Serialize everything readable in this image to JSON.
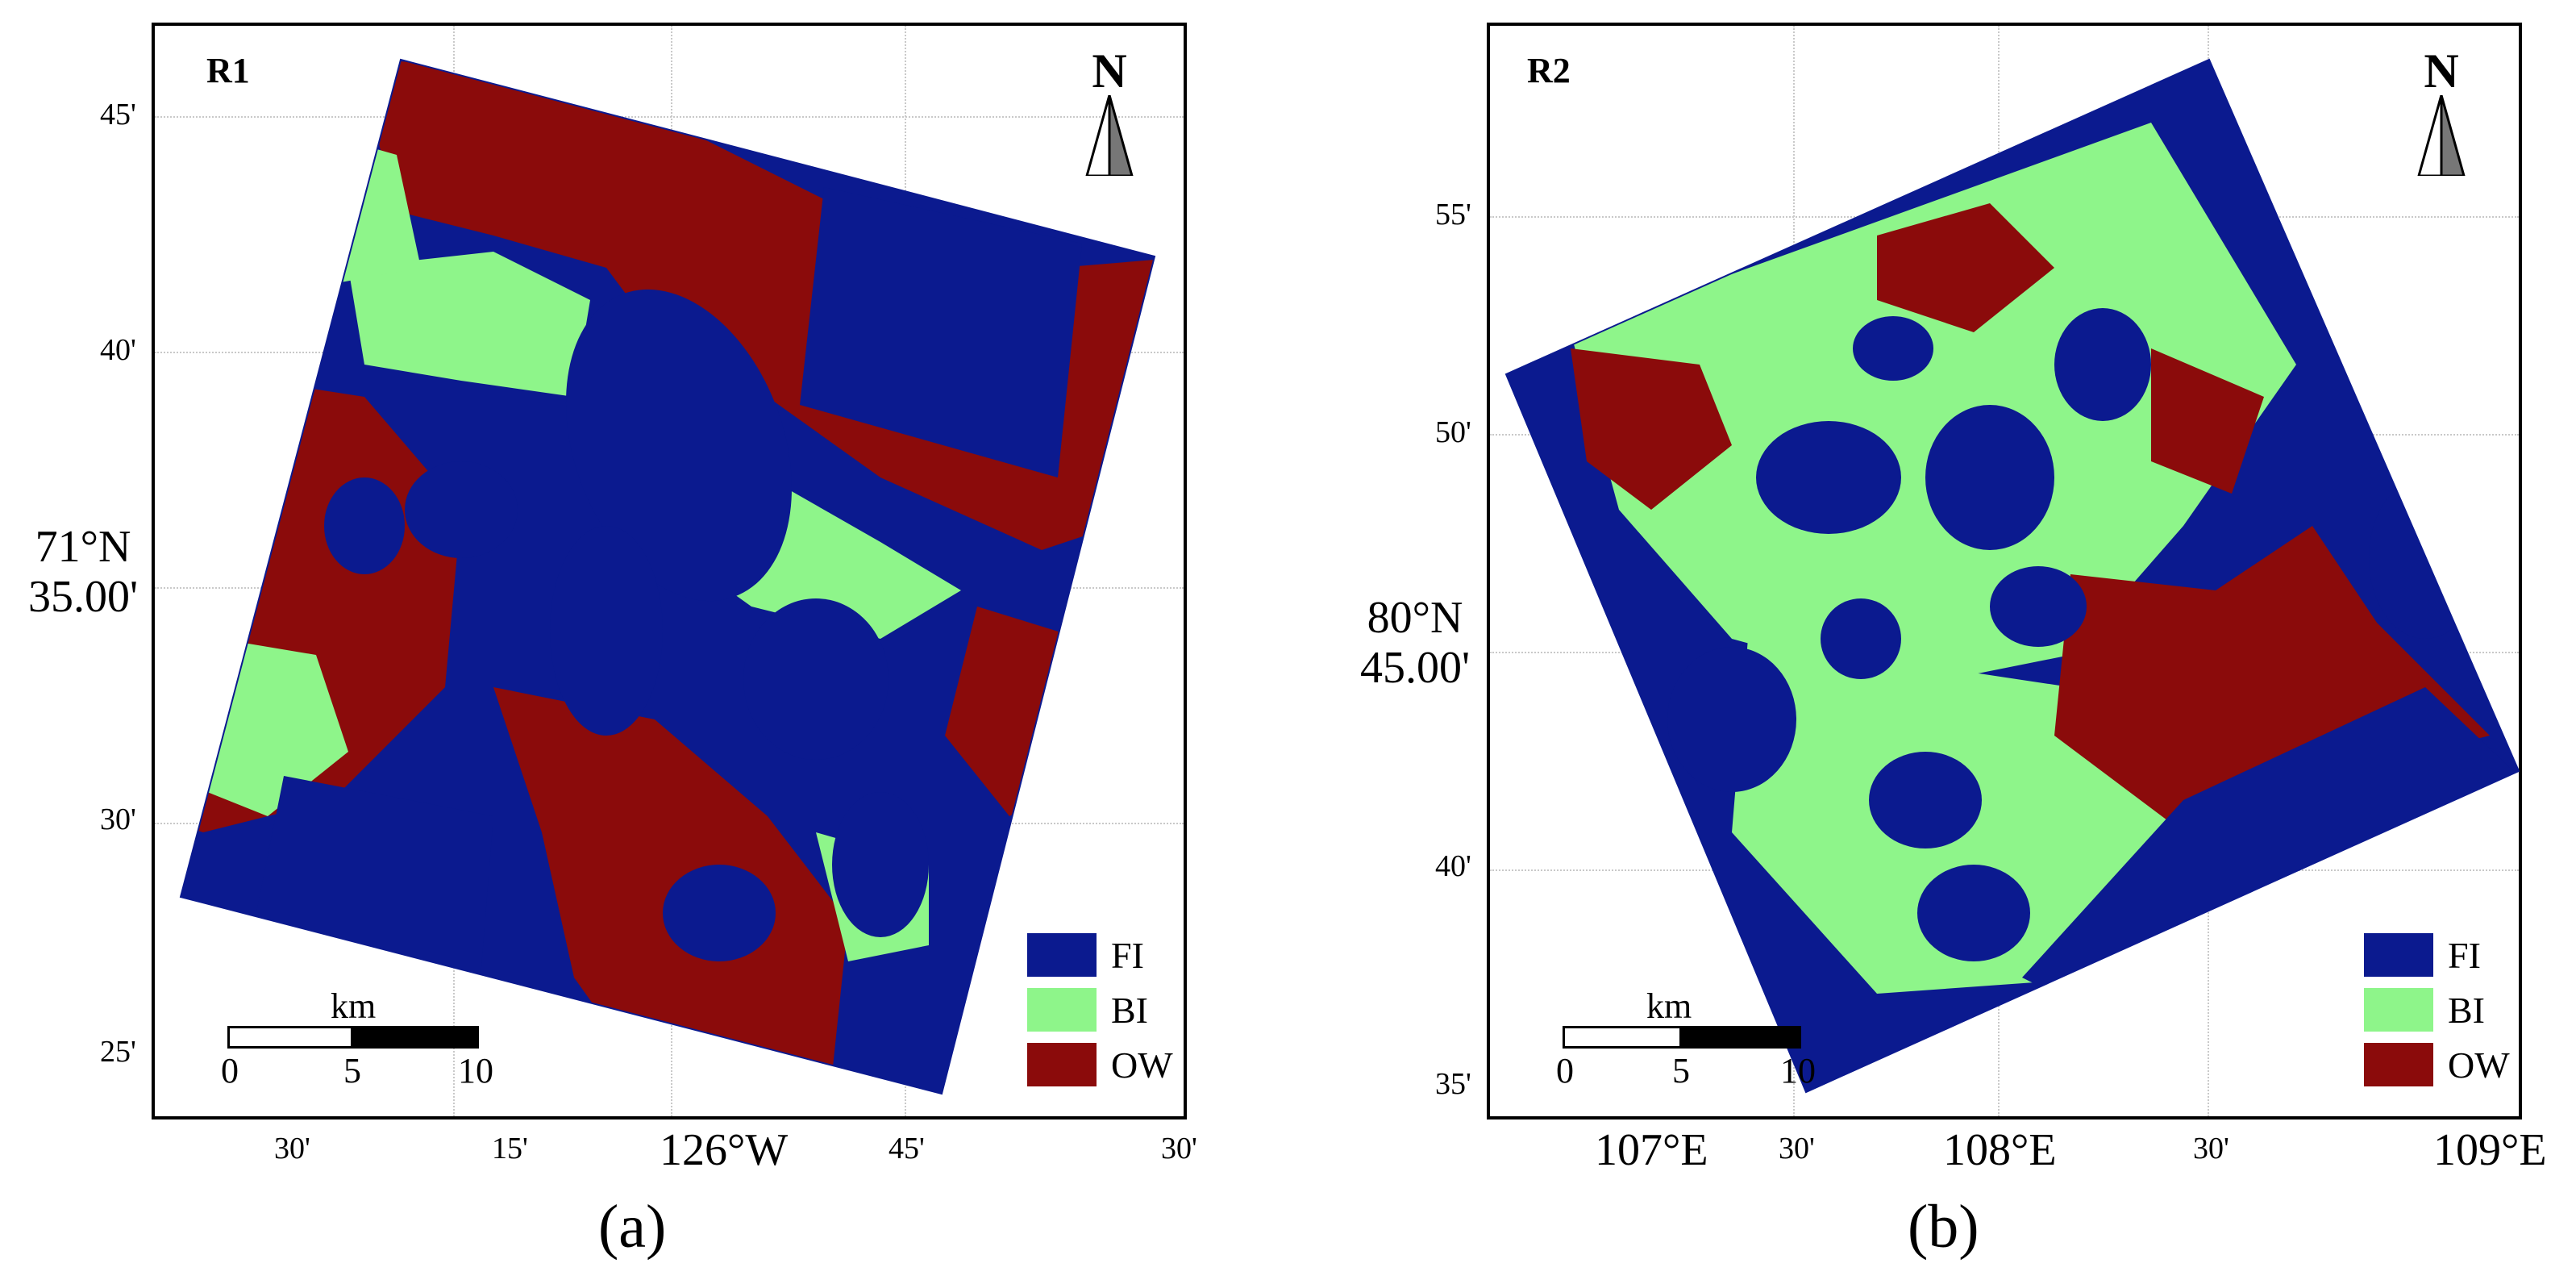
{
  "panels": [
    {
      "caption": "(a)",
      "region": "R1",
      "north": "N",
      "x_ticks_small": [
        "30'",
        "15'",
        "45'",
        "30'"
      ],
      "x_tick_big": "126°W",
      "y_ticks": [
        "45'",
        "40'",
        "30'",
        "25'"
      ],
      "y_tick_big_line1": "71°N",
      "y_tick_big_line2": "35.00'",
      "legend": [
        {
          "label": "FI",
          "color": "#0b1a8f"
        },
        {
          "label": "BI",
          "color": "#8ef58a"
        },
        {
          "label": "OW",
          "color": "#8b0b0b"
        }
      ],
      "scale": {
        "unit": "km",
        "labels": [
          "0",
          "5",
          "10"
        ]
      }
    },
    {
      "caption": "(b)",
      "region": "R2",
      "north": "N",
      "x_ticks_small": [
        "30'",
        "30'"
      ],
      "x_ticks_big": [
        "107°E",
        "108°E",
        "109°E"
      ],
      "y_ticks": [
        "55'",
        "50'",
        "40'",
        "35'"
      ],
      "y_tick_big_line1": "80°N",
      "y_tick_big_line2": "45.00'",
      "legend": [
        {
          "label": "FI",
          "color": "#0b1a8f"
        },
        {
          "label": "BI",
          "color": "#8ef58a"
        },
        {
          "label": "OW",
          "color": "#8b0b0b"
        }
      ],
      "scale": {
        "unit": "km",
        "labels": [
          "0",
          "5",
          "10"
        ]
      }
    }
  ],
  "colors": {
    "fi": "#0b1a8f",
    "bi": "#8ef58a",
    "ow": "#8b0b0b"
  }
}
